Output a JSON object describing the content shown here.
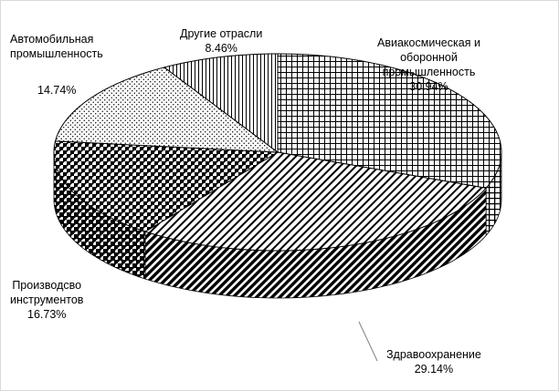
{
  "chart_data": {
    "type": "pie",
    "style": "3d",
    "slices": [
      {
        "label": "Авиакосмическая и оборонной промышленность",
        "label_lines": [
          "Авиакосмическая и",
          "оборонной",
          "промышленность"
        ],
        "value": 30.94,
        "value_text": "30.94%",
        "pattern": "grid"
      },
      {
        "label": "Здравоохранение",
        "label_lines": [
          "Здравоохранение"
        ],
        "value": 29.14,
        "value_text": "29.14%",
        "pattern": "diagonal-stripes"
      },
      {
        "label": "Производсво инструментов",
        "label_lines": [
          "Производсво",
          "инструментов"
        ],
        "value": 16.73,
        "value_text": "16.73%",
        "pattern": "houndstooth"
      },
      {
        "label": "Автомобильная промышленность",
        "label_lines": [
          "Автомобильная",
          "промышленность"
        ],
        "value": 14.74,
        "value_text": "14.74%",
        "pattern": "dots"
      },
      {
        "label": "Другие отрасли",
        "label_lines": [
          "Другие отрасли"
        ],
        "value": 8.46,
        "value_text": "8.46%",
        "pattern": "vertical-lines"
      }
    ],
    "legend": false,
    "colors": {
      "ink": "#000000",
      "background": "#ffffff"
    }
  }
}
